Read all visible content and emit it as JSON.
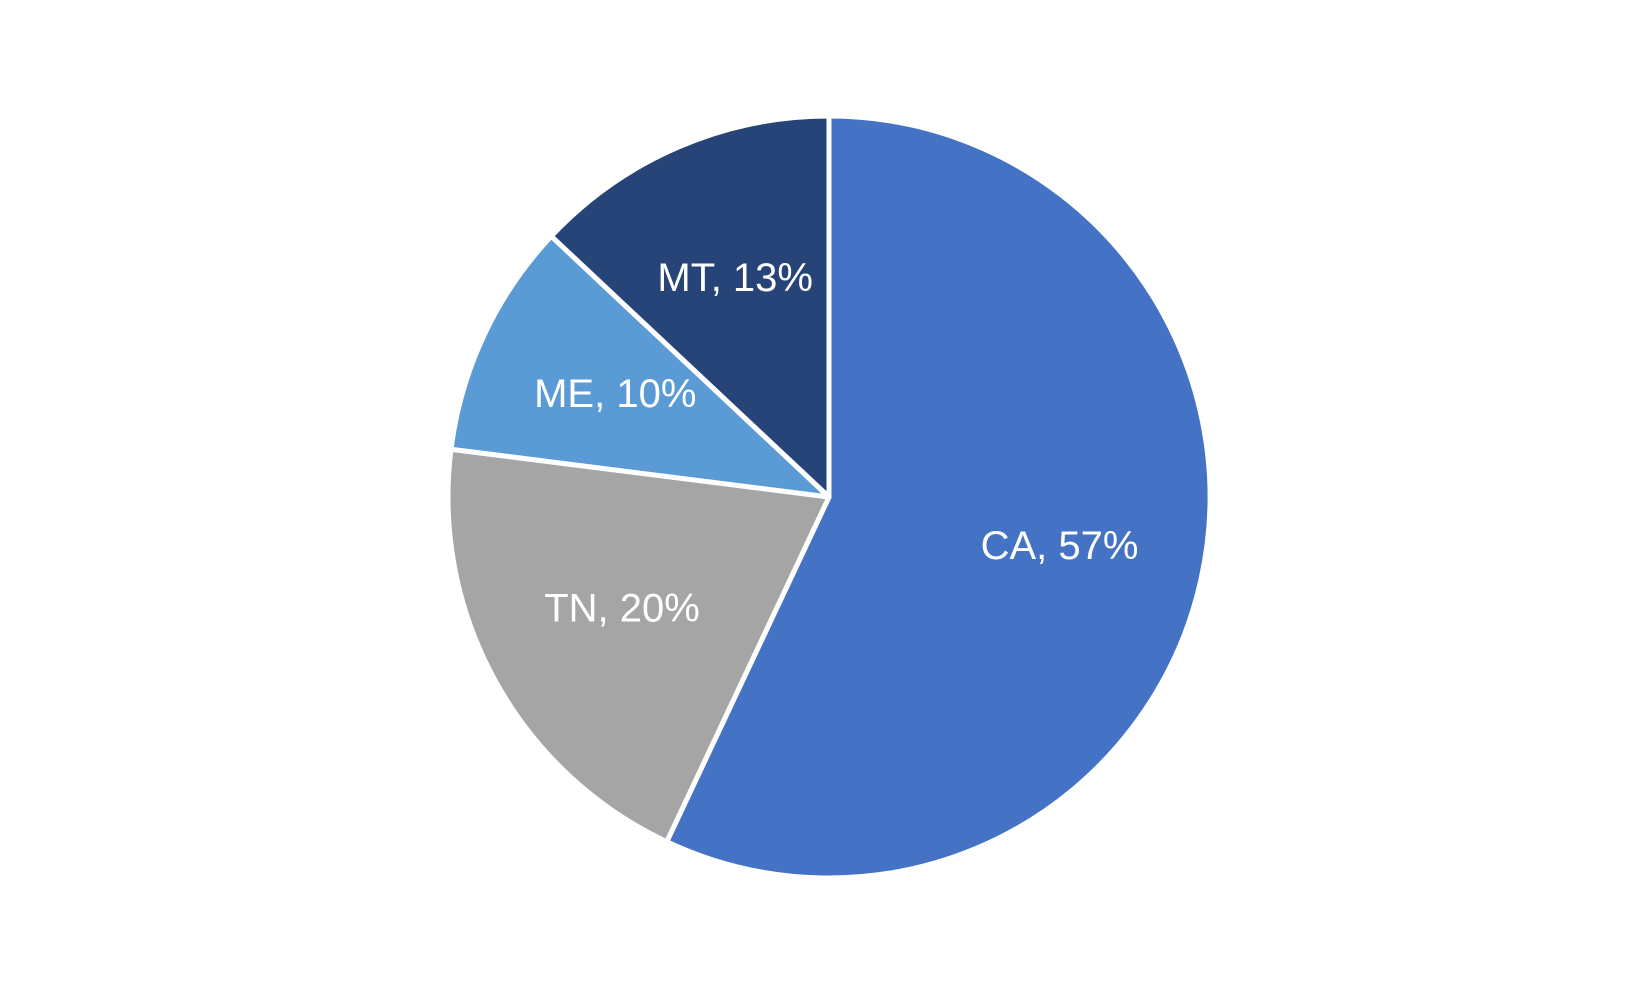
{
  "chart_data": {
    "type": "pie",
    "values": [
      57,
      20,
      10,
      13
    ],
    "value_labels": [
      "CA, 57%",
      "TN, 20%",
      "ME, 10%",
      "MT, 13%"
    ],
    "colors": [
      "#4472c4",
      "#a5a5a5",
      "#5b9bd5",
      "#264478"
    ]
  }
}
